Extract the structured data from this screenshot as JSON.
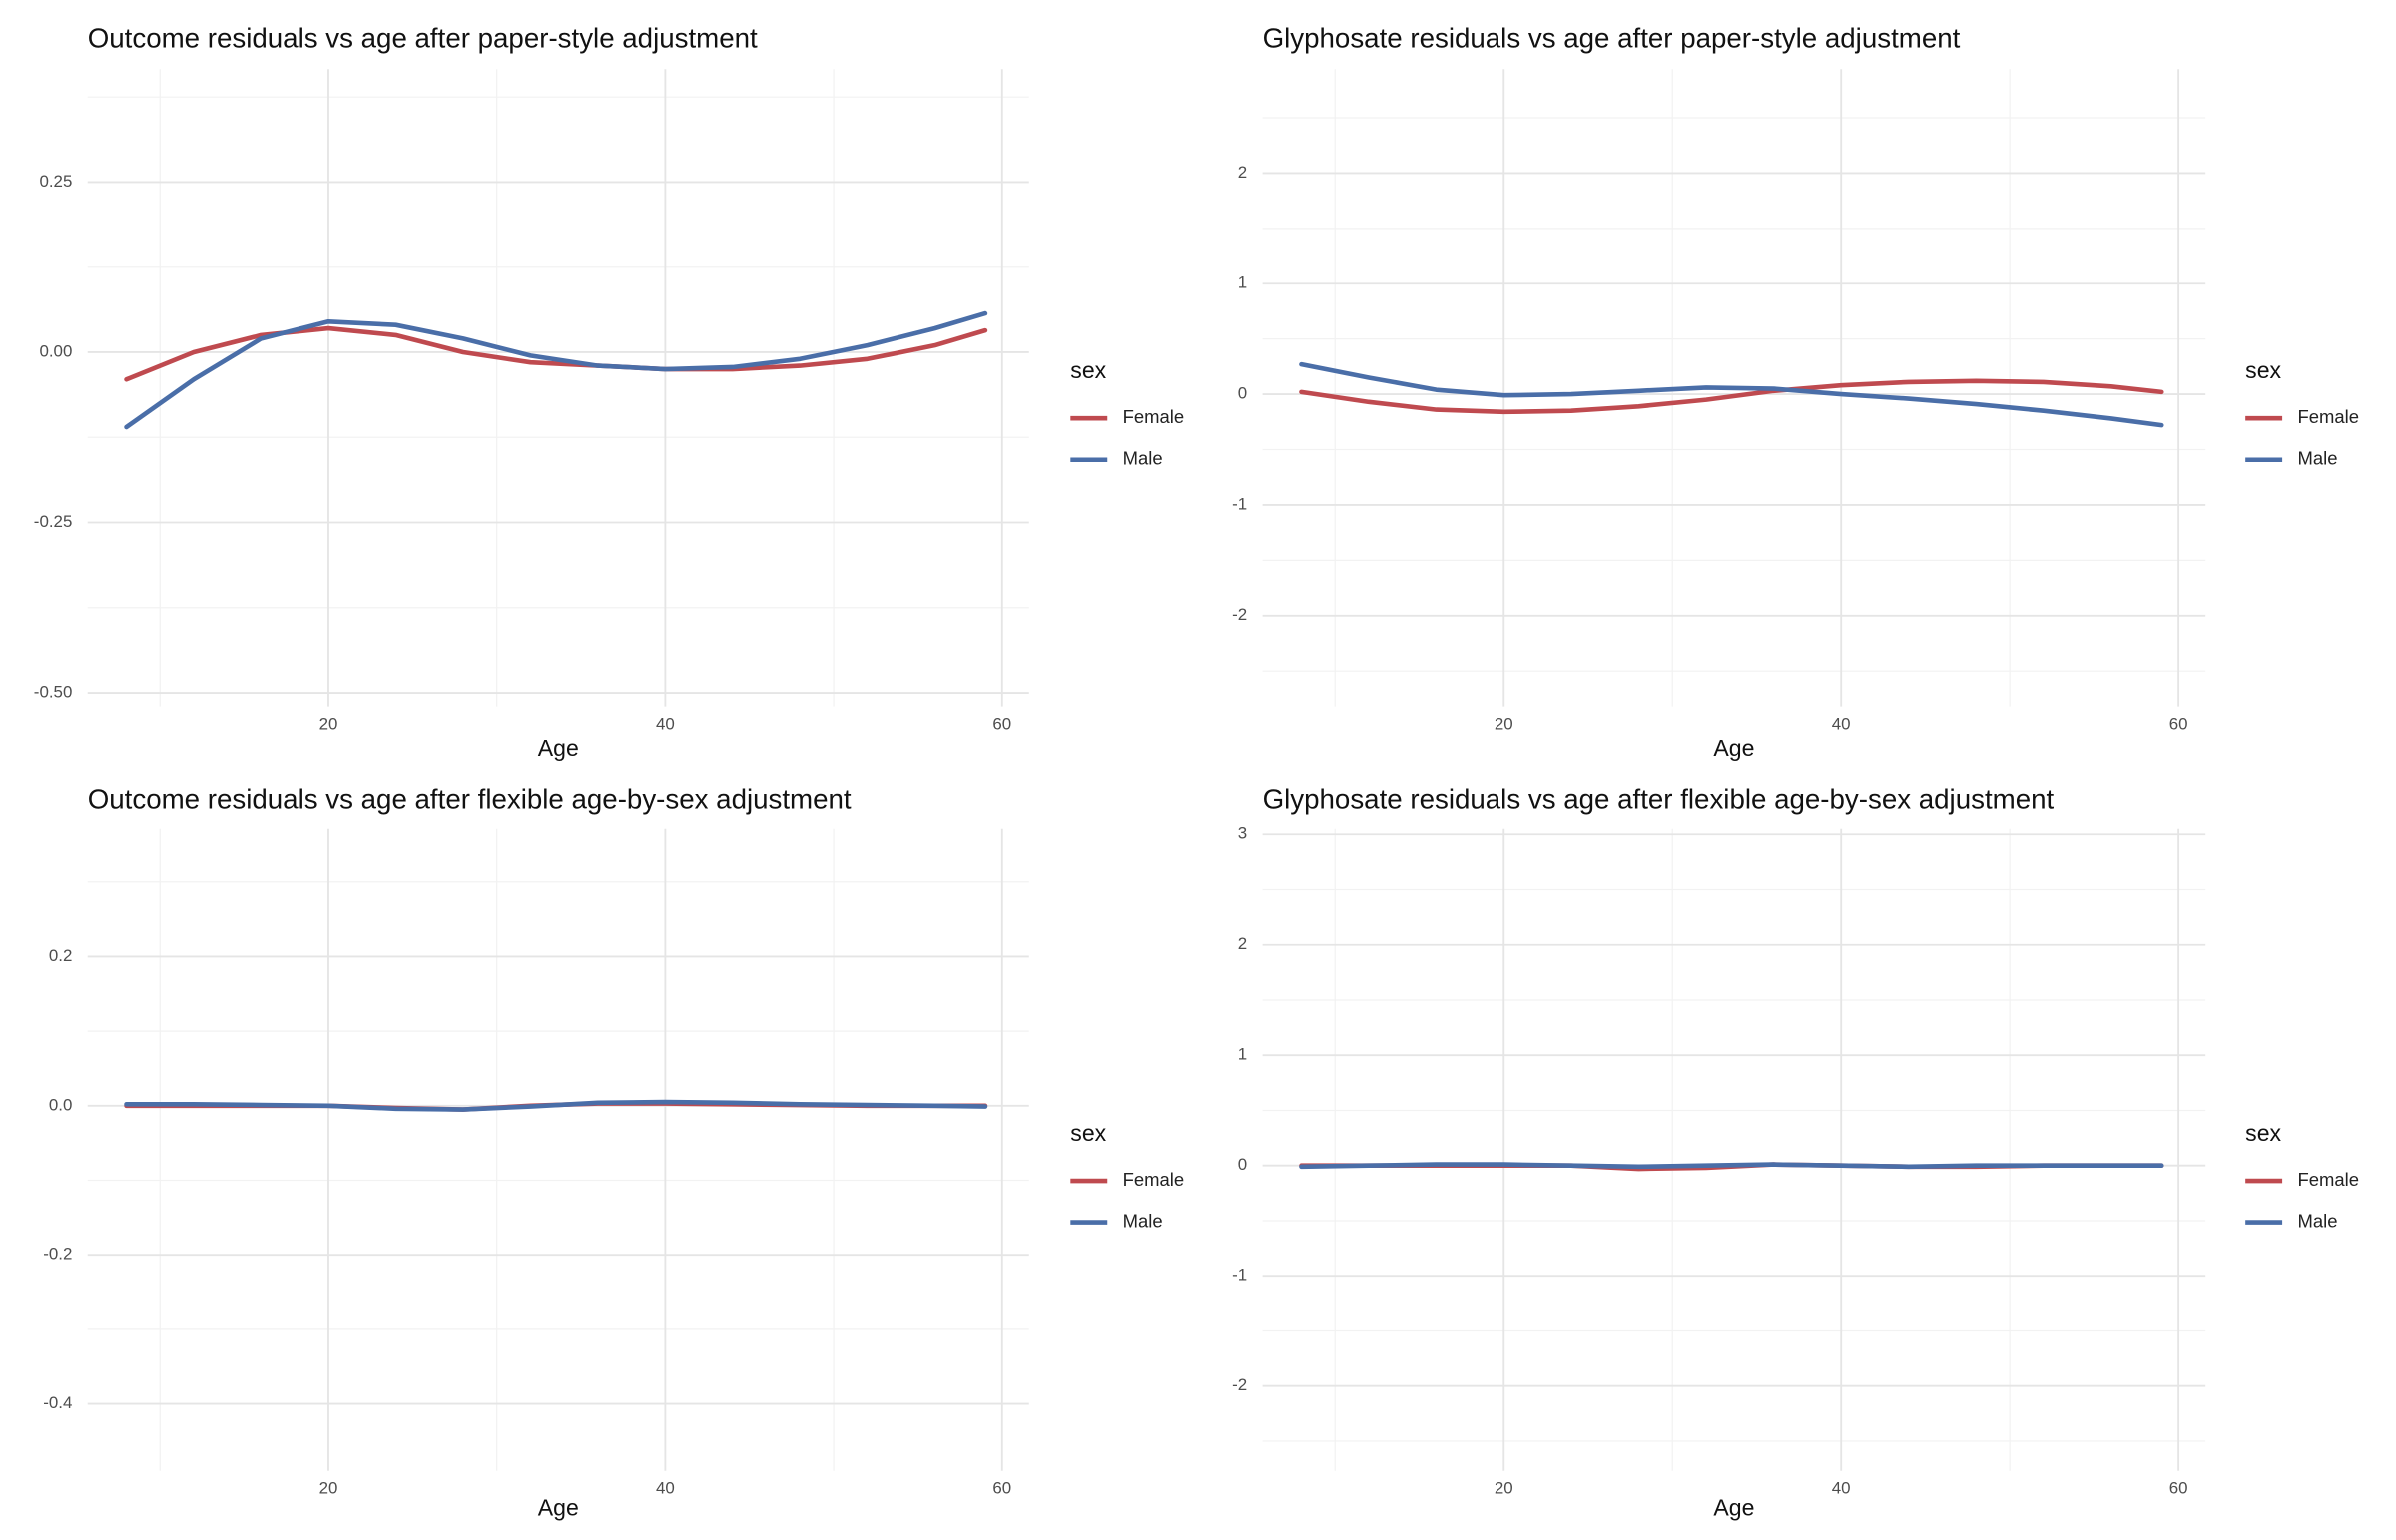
{
  "chart_data": [
    {
      "type": "line",
      "title": "Outcome residuals vs age after paper-style adjustment",
      "x_label": "Age",
      "legend_title": "sex",
      "x": [
        8,
        12,
        16,
        20,
        24,
        28,
        32,
        36,
        40,
        44,
        48,
        52,
        56,
        59
      ],
      "series": [
        {
          "name": "Female",
          "color": "#bf4a4f",
          "values": [
            -0.04,
            0.0,
            0.025,
            0.035,
            0.025,
            0.0,
            -0.015,
            -0.02,
            -0.025,
            -0.025,
            -0.02,
            -0.01,
            0.01,
            0.032
          ]
        },
        {
          "name": "Male",
          "color": "#4a6ea8",
          "values": [
            -0.11,
            -0.04,
            0.02,
            0.045,
            0.04,
            0.02,
            -0.005,
            -0.02,
            -0.025,
            -0.022,
            -0.01,
            0.01,
            0.035,
            0.057
          ]
        }
      ],
      "xlim": [
        5.7,
        61.6
      ],
      "ylim": [
        -0.52,
        0.416
      ],
      "xticks": [
        20,
        40,
        60
      ],
      "yticks": [
        {
          "value": -0.5,
          "label": "-0.50"
        },
        -0.25,
        {
          "value": 0,
          "label": "0.00"
        },
        0.25
      ],
      "grid": true
    },
    {
      "type": "line",
      "title": "Glyphosate residuals vs age after paper-style adjustment",
      "x_label": "Age",
      "legend_title": "sex",
      "x": [
        8,
        12,
        16,
        20,
        24,
        28,
        32,
        36,
        40,
        44,
        48,
        52,
        56,
        59
      ],
      "series": [
        {
          "name": "Female",
          "color": "#bf4a4f",
          "values": [
            0.02,
            -0.07,
            -0.14,
            -0.16,
            -0.15,
            -0.11,
            -0.05,
            0.03,
            0.08,
            0.11,
            0.12,
            0.11,
            0.07,
            0.02
          ]
        },
        {
          "name": "Male",
          "color": "#4a6ea8",
          "values": [
            0.27,
            0.15,
            0.04,
            -0.01,
            0.0,
            0.03,
            0.06,
            0.05,
            0.0,
            -0.04,
            -0.09,
            -0.15,
            -0.22,
            -0.28
          ]
        }
      ],
      "xlim": [
        5.7,
        61.6
      ],
      "ylim": [
        -2.82,
        2.94
      ],
      "xticks": [
        20,
        40,
        60
      ],
      "yticks": [
        -2,
        -1,
        0,
        1,
        2
      ],
      "grid": true
    },
    {
      "type": "line",
      "title": "Outcome residuals vs age after flexible age-by-sex adjustment",
      "x_label": "Age",
      "legend_title": "sex",
      "x": [
        8,
        12,
        16,
        20,
        24,
        28,
        32,
        36,
        40,
        44,
        48,
        52,
        56,
        59
      ],
      "series": [
        {
          "name": "Female",
          "color": "#bf4a4f",
          "values": [
            0,
            0,
            0,
            0,
            -0.003,
            -0.005,
            0,
            0.003,
            0.003,
            0.002,
            0.001,
            0,
            0,
            0
          ]
        },
        {
          "name": "Male",
          "color": "#4a6ea8",
          "values": [
            0.002,
            0.002,
            0.001,
            0,
            -0.004,
            -0.005,
            -0.001,
            0.004,
            0.005,
            0.004,
            0.002,
            0.001,
            0,
            -0.001
          ]
        }
      ],
      "xlim": [
        5.7,
        61.6
      ],
      "ylim": [
        -0.49,
        0.371
      ],
      "xticks": [
        20,
        40,
        60
      ],
      "yticks": [
        -0.4,
        -0.2,
        {
          "value": 0,
          "label": "0.0"
        },
        0.2
      ],
      "grid": true
    },
    {
      "type": "line",
      "title": "Glyphosate residuals vs age after flexible age-by-sex adjustment",
      "x_label": "Age",
      "legend_title": "sex",
      "x": [
        8,
        12,
        16,
        20,
        24,
        28,
        32,
        36,
        40,
        44,
        48,
        52,
        56,
        59
      ],
      "series": [
        {
          "name": "Female",
          "color": "#bf4a4f",
          "values": [
            0,
            0,
            0,
            0,
            0,
            -0.03,
            -0.02,
            0.01,
            0,
            -0.01,
            -0.01,
            0,
            0,
            0
          ]
        },
        {
          "name": "Male",
          "color": "#4a6ea8",
          "values": [
            -0.01,
            0,
            0.01,
            0.01,
            0,
            -0.01,
            0,
            0.01,
            0,
            -0.01,
            0,
            0,
            0,
            0
          ]
        }
      ],
      "xlim": [
        5.7,
        61.6
      ],
      "ylim": [
        -2.77,
        3.05
      ],
      "xticks": [
        20,
        40,
        60
      ],
      "yticks": [
        -2,
        -1,
        0,
        1,
        2,
        3
      ],
      "grid": true
    }
  ]
}
